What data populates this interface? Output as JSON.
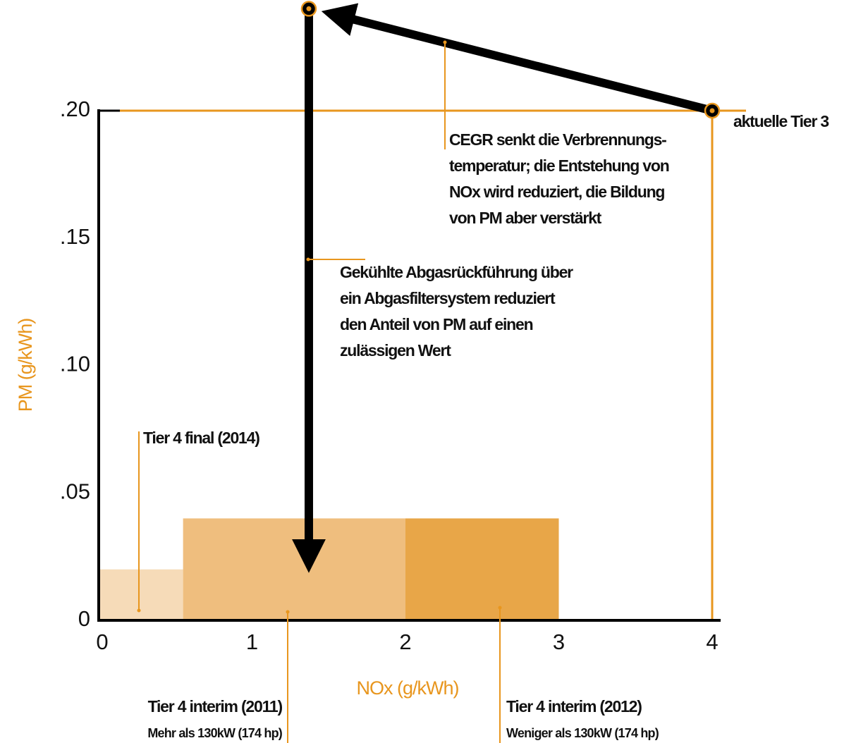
{
  "chart_data": {
    "type": "region",
    "x_label": "NOx (g/kWh)",
    "y_label": "PM (g/kWh)",
    "xlim": [
      0,
      4
    ],
    "xticks": [
      0,
      1,
      2,
      3,
      4
    ],
    "ylim": [
      0,
      0.2
    ],
    "yticks": [
      0,
      {
        "value": 0.05,
        "label": ".05"
      },
      {
        "value": 0.1,
        "label": ".10"
      },
      {
        "value": 0.15,
        "label": ".15"
      },
      {
        "value": 0.2,
        "label": ".20"
      }
    ],
    "regions": [
      {
        "name": "Tier 4 final (2014)",
        "x": [
          0,
          0.55
        ],
        "value": 0.02,
        "color": "#f6dbb8"
      },
      {
        "name": "Tier 4 interim (2011)",
        "subtitle": "Mehr als  130kW (174 hp)",
        "x": [
          0.55,
          2
        ],
        "value": 0.04,
        "color": "#efbe7e"
      },
      {
        "name": "Tier 4 interim (2012)",
        "subtitle": "Weniger als  130kW (174 hp)",
        "x": [
          2,
          3
        ],
        "value": 0.04,
        "color": "#e8a648"
      }
    ],
    "points": [
      {
        "label": "aktuelle Tier 3",
        "x": 4,
        "y": 0.2
      },
      {
        "x": 1.37,
        "y": 0.24
      }
    ],
    "arrow_end": {
      "x": 1.37,
      "y": 0.014
    },
    "annotations": [
      [
        "CEGR senkt die Verbrennungs-",
        "temperatur; die Entstehung von",
        "NOx wird reduziert, die Bildung",
        "von PM aber verstärkt"
      ],
      [
        "Gekühlte Abgasrückführung über",
        "ein Abgasfiltersystem reduziert",
        "den Anteil von PM auf einen",
        "zulässigen Wert"
      ]
    ]
  }
}
